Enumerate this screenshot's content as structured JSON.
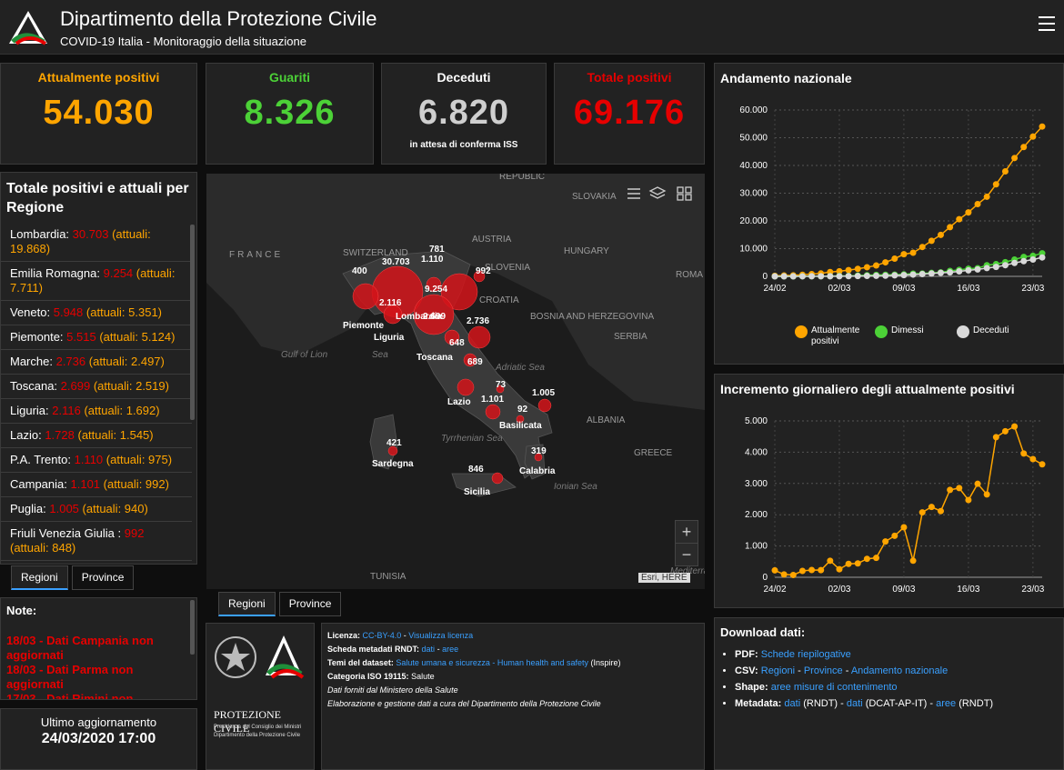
{
  "header": {
    "title": "Dipartimento della Protezione Civile",
    "subtitle": "COVID-19 Italia - Monitoraggio della situazione"
  },
  "kpis": [
    {
      "label": "Attualmente positivi",
      "value": "54.030",
      "color": "#ffa500",
      "note": ""
    },
    {
      "label": "Guariti",
      "value": "8.326",
      "color": "#4cd137",
      "note": ""
    },
    {
      "label": "Deceduti",
      "value": "6.820",
      "color": "#cfcfcf",
      "note": "in attesa di conferma ISS"
    },
    {
      "label": "Totale positivi",
      "value": "69.176",
      "color": "#e60000",
      "note": ""
    }
  ],
  "regions_panel": {
    "title": "Totale positivi e attuali per Regione",
    "items": [
      {
        "name": "Lombardia:",
        "total": "30.703",
        "current": "(attuali: 19.868)"
      },
      {
        "name": "Emilia Romagna:",
        "total": "9.254",
        "current": "(attuali: 7.711)"
      },
      {
        "name": "Veneto:",
        "total": "5.948",
        "current": "(attuali: 5.351)"
      },
      {
        "name": "Piemonte:",
        "total": "5.515",
        "current": "(attuali: 5.124)"
      },
      {
        "name": "Marche:",
        "total": "2.736",
        "current": "(attuali: 2.497)"
      },
      {
        "name": "Toscana:",
        "total": "2.699",
        "current": "(attuali: 2.519)"
      },
      {
        "name": "Liguria:",
        "total": "2.116",
        "current": "(attuali: 1.692)"
      },
      {
        "name": "Lazio:",
        "total": "1.728",
        "current": "(attuali: 1.545)"
      },
      {
        "name": "P.A. Trento:",
        "total": "1.110",
        "current": "(attuali: 975)"
      },
      {
        "name": "Campania:",
        "total": "1.101",
        "current": "(attuali: 992)"
      },
      {
        "name": "Puglia:",
        "total": "1.005",
        "current": "(attuali: 940)"
      },
      {
        "name": "Friuli Venezia Giulia :",
        "total": "992",
        "current": "(attuali: 848)"
      }
    ],
    "tabs": [
      "Regioni",
      "Province"
    ]
  },
  "map": {
    "tabs": [
      "Regioni",
      "Province"
    ],
    "attribution": "Esri, HERE",
    "countries": [
      "FRANCE",
      "SWITZERLAND",
      "AUSTRIA",
      "SLOVAKIA",
      "HUNGARY",
      "SLOVENIA",
      "CROATIA",
      "BOSNIA AND HERZEGOVINA",
      "SERBIA",
      "ROMA",
      "ALBANIA",
      "GREECE",
      "TUNISIA",
      "REPUBLIC"
    ],
    "seas": [
      "Gulf of Lion",
      "Adriatic Sea",
      "Tyrrhenian Sea",
      "Ionian Sea",
      "Mediterranean Sea"
    ],
    "seas_short": [
      "Sea"
    ],
    "regions": [
      "Lombardia",
      "Piemonte",
      "Liguria",
      "Toscana",
      "Lazio",
      "Basilicata",
      "Calabria",
      "Sardegna",
      "Sicilia"
    ],
    "values": [
      "30.703",
      "781",
      "1.110",
      "400",
      "992",
      "9.254",
      "2.116",
      "2.699",
      "2.736",
      "648",
      "689",
      "73",
      "1.101",
      "1.005",
      "92",
      "421",
      "319",
      "846"
    ]
  },
  "chart1": {
    "title": "Andamento nazionale",
    "legend": [
      "Attualmente positivi",
      "Dimessi",
      "Deceduti"
    ]
  },
  "chart2": {
    "title": "Incremento giornaliero degli attualmente positivi"
  },
  "chart_data": [
    {
      "type": "line",
      "title": "Andamento nazionale",
      "x": [
        "24/02",
        "25/02",
        "26/02",
        "27/02",
        "28/02",
        "29/02",
        "01/03",
        "02/03",
        "03/03",
        "04/03",
        "05/03",
        "06/03",
        "07/03",
        "08/03",
        "09/03",
        "10/03",
        "11/03",
        "12/03",
        "13/03",
        "14/03",
        "15/03",
        "16/03",
        "17/03",
        "18/03",
        "19/03",
        "20/03",
        "21/03",
        "22/03",
        "23/03",
        "24/03"
      ],
      "xticks": [
        "24/02",
        "02/03",
        "09/03",
        "16/03",
        "23/03"
      ],
      "ylim": [
        0,
        60000
      ],
      "yticks": [
        "0",
        "10.000",
        "20.000",
        "30.000",
        "40.000",
        "50.000",
        "60.000"
      ],
      "series": [
        {
          "name": "Attualmente positivi",
          "color": "#ffa500",
          "values": [
            221,
            311,
            385,
            588,
            821,
            1049,
            1577,
            1835,
            2263,
            2706,
            3296,
            3916,
            5061,
            6387,
            7985,
            8514,
            10590,
            12839,
            14955,
            17750,
            20603,
            23073,
            26062,
            28710,
            33190,
            37860,
            42681,
            46638,
            50418,
            54030
          ]
        },
        {
          "name": "Dimessi",
          "color": "#4cd137",
          "values": [
            1,
            1,
            3,
            45,
            46,
            50,
            83,
            149,
            160,
            276,
            414,
            523,
            589,
            622,
            724,
            1004,
            1045,
            1258,
            1439,
            1966,
            2335,
            2749,
            2941,
            4025,
            4440,
            5129,
            6072,
            7024,
            7432,
            8326
          ]
        },
        {
          "name": "Deceduti",
          "color": "#d9d9d9",
          "values": [
            7,
            10,
            12,
            17,
            21,
            29,
            34,
            52,
            79,
            107,
            148,
            197,
            233,
            366,
            463,
            631,
            827,
            1016,
            1266,
            1441,
            1809,
            2158,
            2503,
            2978,
            3405,
            4032,
            4825,
            5476,
            6077,
            6820
          ]
        }
      ],
      "legend": "bottom"
    },
    {
      "type": "line",
      "title": "Incremento giornaliero degli attualmente positivi",
      "x": [
        "24/02",
        "25/02",
        "26/02",
        "27/02",
        "28/02",
        "29/02",
        "01/03",
        "02/03",
        "03/03",
        "04/03",
        "05/03",
        "06/03",
        "07/03",
        "08/03",
        "09/03",
        "10/03",
        "11/03",
        "12/03",
        "13/03",
        "14/03",
        "15/03",
        "16/03",
        "17/03",
        "18/03",
        "19/03",
        "20/03",
        "21/03",
        "22/03",
        "23/03",
        "24/03"
      ],
      "xticks": [
        "24/02",
        "02/03",
        "09/03",
        "16/03",
        "23/03"
      ],
      "ylim": [
        0,
        5000
      ],
      "yticks": [
        "0",
        "1.000",
        "2.000",
        "3.000",
        "4.000",
        "5.000"
      ],
      "series": [
        {
          "name": "",
          "color": "#ffa500",
          "values": [
            221,
            90,
            74,
            203,
            233,
            228,
            528,
            258,
            428,
            443,
            590,
            620,
            1145,
            1326,
            1598,
            529,
            2076,
            2249,
            2116,
            2795,
            2853,
            2470,
            2989,
            2648,
            4480,
            4670,
            4821,
            3957,
            3780,
            3612
          ]
        }
      ]
    }
  ],
  "notes": {
    "title": "Note:",
    "lines": [
      "18/03 - Dati Campania non aggiornati",
      "18/03 - Dati Parma non aggiornati",
      "17/03 - Dati Rimini non"
    ]
  },
  "update": {
    "label": "Ultimo aggiornamento",
    "value": "24/03/2020 17:00"
  },
  "logo_block": {
    "name": "PROTEZIONE CIVILE",
    "sub1": "Presidenza del Consiglio dei Ministri",
    "sub2": "Dipartimento della Protezione Civile"
  },
  "license": {
    "licenza_label": "Licenza:",
    "licenza_link1": "CC-BY-4.0",
    "licenza_link2": "Visualizza licenza",
    "meta_label": "Scheda metadati RNDT:",
    "meta_link1": "dati",
    "meta_link2": "aree",
    "temi_label": "Temi del dataset:",
    "temi_link": "Salute umana e sicurezza - Human health and safety",
    "temi_suffix": "(Inspire)",
    "cat_label": "Categoria ISO 19115:",
    "cat_value": "Salute",
    "line1": "Dati forniti dal Ministero della Salute",
    "line2": "Elaborazione e gestione dati a cura del Dipartimento della Protezione Civile"
  },
  "download": {
    "title": "Download dati:",
    "pdf_label": "PDF:",
    "pdf_link": "Schede riepilogative",
    "csv_label": "CSV:",
    "csv_link1": "Regioni",
    "csv_link2": "Province",
    "csv_link3": "Andamento nazionale",
    "shape_label": "Shape:",
    "shape_link": "aree misure di contenimento",
    "meta_label": "Metadata:",
    "meta_link1": "dati",
    "meta_s1": "(RNDT) -",
    "meta_link2": "dati",
    "meta_s2": "(DCAT-AP-IT) -",
    "meta_link3": "aree",
    "meta_s3": "(RNDT)"
  },
  "sep": " - "
}
